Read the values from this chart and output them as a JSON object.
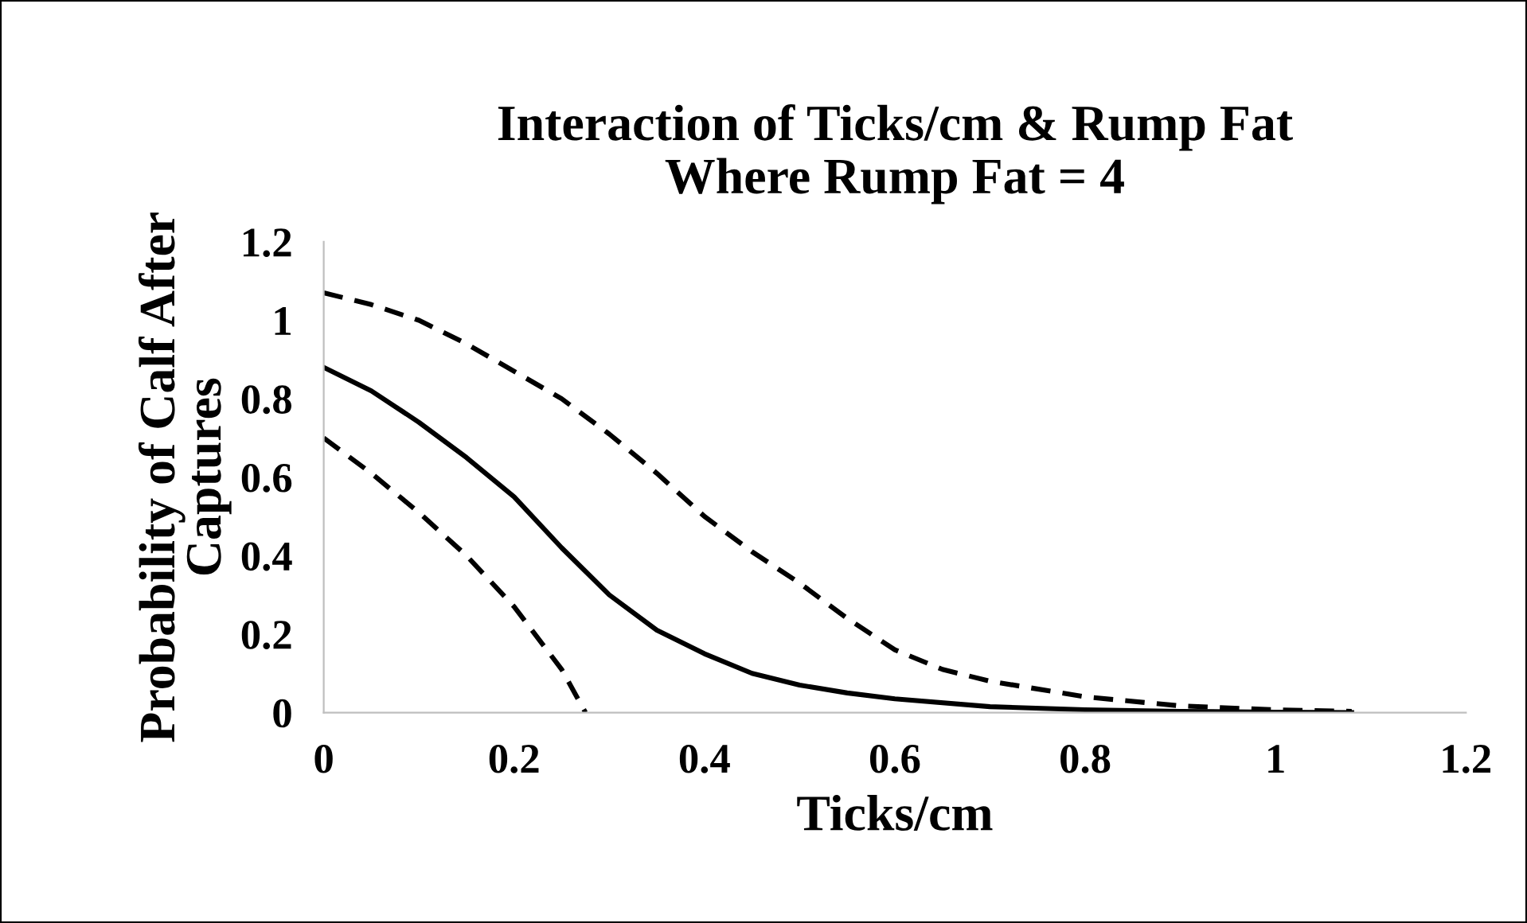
{
  "chart_data": {
    "type": "line",
    "title": "Interaction of Ticks/cm & Rump Fat\nWhere Rump Fat = 4",
    "xlabel": "Ticks/cm",
    "ylabel": "Probability of Calf After\nCaptures",
    "xlim": [
      0,
      1.2
    ],
    "ylim": [
      0,
      1.2
    ],
    "xticks": [
      0,
      0.2,
      0.4,
      0.6,
      0.8,
      1,
      1.2
    ],
    "yticks": [
      0,
      0.2,
      0.4,
      0.6,
      0.8,
      1,
      1.2
    ],
    "marker": "none",
    "series": [
      {
        "color": "#000000",
        "line_style": "dashed",
        "x": [
          0,
          0.05,
          0.1,
          0.15,
          0.2,
          0.25,
          0.3,
          0.35,
          0.4,
          0.45,
          0.5,
          0.55,
          0.6,
          0.65,
          0.7,
          0.8,
          0.9,
          1.0,
          1.08
        ],
        "values": [
          1.07,
          1.04,
          1.0,
          0.94,
          0.87,
          0.8,
          0.71,
          0.61,
          0.5,
          0.41,
          0.33,
          0.24,
          0.16,
          0.11,
          0.08,
          0.04,
          0.017,
          0.007,
          0.003
        ]
      },
      {
        "color": "#000000",
        "line_style": "solid",
        "x": [
          0,
          0.05,
          0.1,
          0.15,
          0.2,
          0.25,
          0.3,
          0.35,
          0.4,
          0.45,
          0.5,
          0.55,
          0.6,
          0.7,
          0.8,
          0.9,
          1.0,
          1.08
        ],
        "values": [
          0.88,
          0.82,
          0.74,
          0.65,
          0.55,
          0.42,
          0.3,
          0.21,
          0.15,
          0.1,
          0.07,
          0.05,
          0.035,
          0.015,
          0.007,
          0.003,
          0.001,
          0
        ]
      },
      {
        "color": "#000000",
        "line_style": "dashed",
        "x": [
          0,
          0.05,
          0.1,
          0.15,
          0.2,
          0.25,
          0.275
        ],
        "values": [
          0.7,
          0.61,
          0.51,
          0.4,
          0.27,
          0.11,
          0
        ]
      }
    ]
  }
}
